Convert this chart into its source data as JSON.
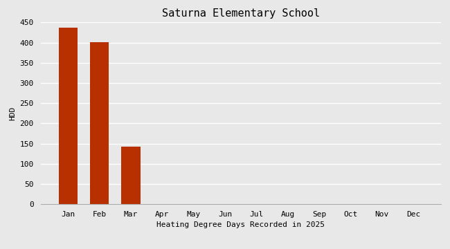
{
  "title": "Saturna Elementary School",
  "xlabel": "Heating Degree Days Recorded in 2025",
  "ylabel": "HDD",
  "categories": [
    "Jan",
    "Feb",
    "Mar",
    "Apr",
    "May",
    "Jun",
    "Jul",
    "Aug",
    "Sep",
    "Oct",
    "Nov",
    "Dec"
  ],
  "values": [
    437,
    401,
    143,
    0,
    0,
    0,
    0,
    0,
    0,
    0,
    0,
    0
  ],
  "bar_color": "#b83000",
  "ylim": [
    0,
    450
  ],
  "yticks": [
    0,
    50,
    100,
    150,
    200,
    250,
    300,
    350,
    400,
    450
  ],
  "background_color": "#e8e8e8",
  "plot_bg_color": "#e8e8e8",
  "grid_color": "#ffffff",
  "title_fontsize": 11,
  "label_fontsize": 8,
  "tick_fontsize": 8
}
